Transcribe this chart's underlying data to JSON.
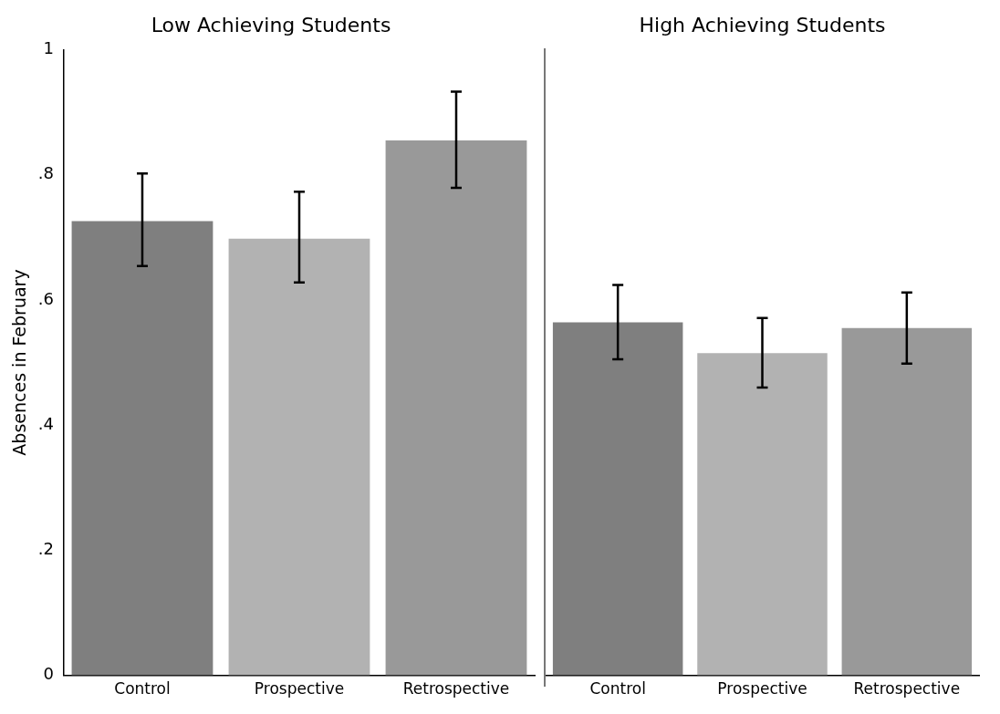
{
  "chart_data": [
    {
      "type": "bar",
      "title": "Low Achieving Students",
      "ylabel": "Absences in February",
      "categories": [
        "Control",
        "Prospective",
        "Retrospective"
      ],
      "values": [
        0.726,
        0.698,
        0.855
      ],
      "colors": [
        "#7f7f7f",
        "#b2b2b2",
        "#999999"
      ],
      "errors": [
        [
          0.654,
          0.802
        ],
        [
          0.628,
          0.773
        ],
        [
          0.779,
          0.933
        ]
      ],
      "ylim": [
        0,
        1
      ],
      "yticks": [
        {
          "value": 0,
          "label": "0"
        },
        {
          "value": 0.2,
          "label": ".2"
        },
        {
          "value": 0.4,
          "label": ".4"
        },
        {
          "value": 0.6,
          "label": ".6"
        },
        {
          "value": 0.8,
          "label": ".8"
        },
        {
          "value": 1,
          "label": "1"
        }
      ],
      "grid": false,
      "legend": false
    },
    {
      "type": "bar",
      "title": "High Achieving Students",
      "categories": [
        "Control",
        "Prospective",
        "Retrospective"
      ],
      "values": [
        0.564,
        0.515,
        0.555
      ],
      "colors": [
        "#7f7f7f",
        "#b2b2b2",
        "#999999"
      ],
      "errors": [
        [
          0.505,
          0.624
        ],
        [
          0.46,
          0.571
        ],
        [
          0.498,
          0.612
        ]
      ],
      "ylim": [
        0,
        1
      ],
      "tick_labels": "x",
      "grid": false,
      "legend": false
    }
  ]
}
